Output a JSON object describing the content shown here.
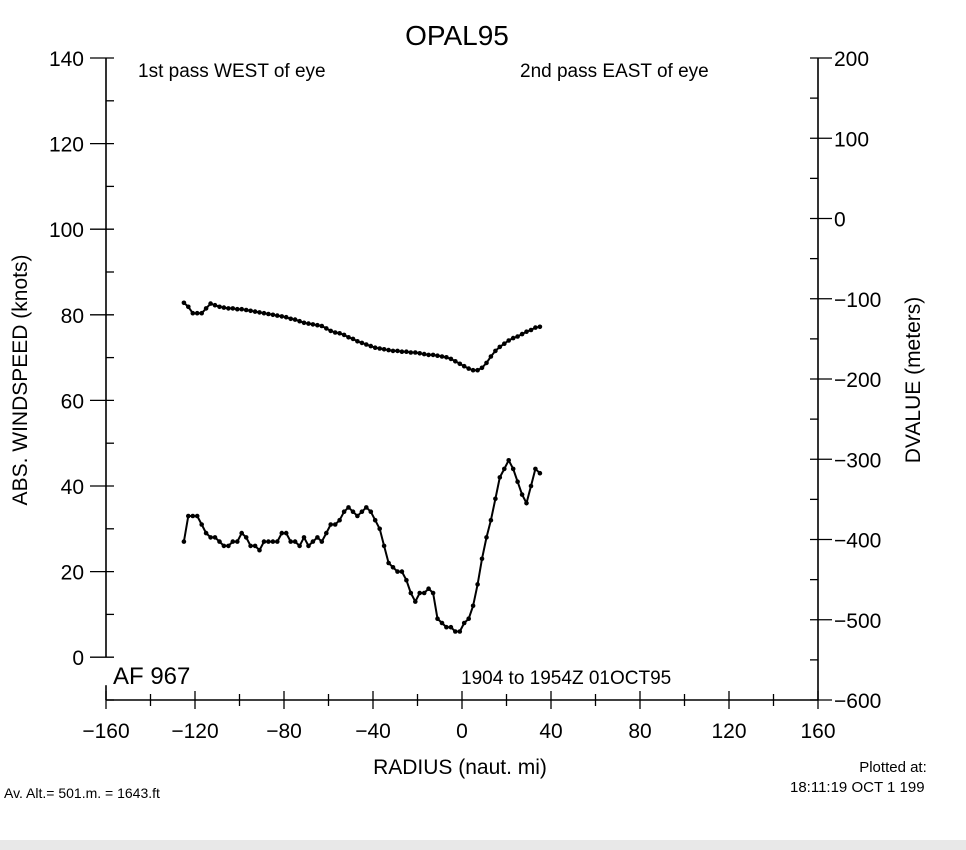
{
  "chart_data": {
    "type": "line",
    "title": "OPAL95",
    "xlabel": "RADIUS (naut. mi)",
    "ylabel": "ABS. WINDSPEED (knots)",
    "y2label": "DVALUE (meters)",
    "xlim": [
      -160,
      160
    ],
    "ylim": [
      -10,
      140
    ],
    "y2lim": [
      -600,
      200
    ],
    "xticks": [
      "−160",
      "−120",
      "−80",
      "−40",
      "0",
      "40",
      "80",
      "120",
      "160"
    ],
    "xtick_values": [
      -160,
      -120,
      -80,
      -40,
      0,
      40,
      80,
      120,
      160
    ],
    "yticks": [
      "0",
      "20",
      "40",
      "60",
      "80",
      "100",
      "120",
      "140"
    ],
    "ytick_values": [
      0,
      20,
      40,
      60,
      80,
      100,
      120,
      140
    ],
    "y2ticks": [
      "−600",
      "−500",
      "−400",
      "−300",
      "−200",
      "−100",
      "0",
      "100",
      "200"
    ],
    "y2tick_values": [
      -600,
      -500,
      -400,
      -300,
      -200,
      -100,
      0,
      100,
      200
    ],
    "grid": false,
    "annotations": {
      "first_pass": "1st pass WEST of eye",
      "second_pass": "2nd pass EAST of eye",
      "aircraft": "AF 967",
      "time_range": "1904 to 1954Z 01OCT95"
    },
    "series": [
      {
        "axis": "right",
        "x": [
          -125,
          -123,
          -121,
          -119,
          -117,
          -115,
          -113,
          -111,
          -109,
          -107,
          -105,
          -103,
          -101,
          -99,
          -97,
          -95,
          -93,
          -91,
          -89,
          -87,
          -85,
          -83,
          -81,
          -79,
          -77,
          -75,
          -73,
          -71,
          -69,
          -67,
          -65,
          -63,
          -61,
          -59,
          -57,
          -55,
          -53,
          -51,
          -49,
          -47,
          -45,
          -43,
          -41,
          -39,
          -37,
          -35,
          -33,
          -31,
          -29,
          -27,
          -25,
          -23,
          -21,
          -19,
          -17,
          -15,
          -13,
          -11,
          -9,
          -7,
          -5,
          -3,
          -1,
          1,
          3,
          5,
          7,
          9,
          11,
          13,
          15,
          17,
          19,
          21,
          23,
          25,
          27,
          29,
          31,
          33,
          35
        ],
        "values": [
          -105,
          -110,
          -118,
          -118,
          -118,
          -112,
          -106,
          -108,
          -110,
          -111,
          -112,
          -112,
          -113,
          -113,
          -114,
          -115,
          -116,
          -117,
          -118,
          -119,
          -120,
          -121,
          -122,
          -123,
          -125,
          -126,
          -128,
          -130,
          -131,
          -132,
          -133,
          -134,
          -137,
          -140,
          -142,
          -143,
          -145,
          -148,
          -150,
          -153,
          -155,
          -157,
          -159,
          -161,
          -162,
          -163,
          -164,
          -165,
          -165,
          -166,
          -166,
          -167,
          -167,
          -168,
          -169,
          -170,
          -170,
          -171,
          -172,
          -173,
          -175,
          -178,
          -181,
          -184,
          -187,
          -189,
          -189,
          -186,
          -180,
          -172,
          -165,
          -160,
          -156,
          -152,
          -149,
          -147,
          -144,
          -141,
          -139,
          -136,
          -135
        ]
      },
      {
        "axis": "left",
        "x": [
          -125,
          -123,
          -121,
          -119,
          -117,
          -115,
          -113,
          -111,
          -109,
          -107,
          -105,
          -103,
          -101,
          -99,
          -97,
          -95,
          -93,
          -91,
          -89,
          -87,
          -85,
          -83,
          -81,
          -79,
          -77,
          -75,
          -73,
          -71,
          -69,
          -67,
          -65,
          -63,
          -61,
          -59,
          -57,
          -55,
          -53,
          -51,
          -49,
          -47,
          -45,
          -43,
          -41,
          -39,
          -37,
          -35,
          -33,
          -31,
          -29,
          -27,
          -25,
          -23,
          -21,
          -19,
          -17,
          -15,
          -13,
          -11,
          -9,
          -7,
          -5,
          -3,
          -1,
          1,
          3,
          5,
          7,
          9,
          11,
          13,
          15,
          17,
          19,
          21,
          23,
          25,
          27,
          29,
          31,
          33,
          35
        ],
        "values": [
          27,
          33,
          33,
          33,
          31,
          29,
          28,
          28,
          27,
          26,
          26,
          27,
          27,
          29,
          28,
          26,
          26,
          25,
          27,
          27,
          27,
          27,
          29,
          29,
          27,
          27,
          26,
          28,
          26,
          27,
          28,
          27,
          29,
          31,
          31,
          32,
          34,
          35,
          34,
          33,
          34,
          35,
          34,
          32,
          30,
          26,
          22,
          21,
          20,
          20,
          18,
          15,
          13,
          15,
          15,
          16,
          15,
          9,
          8,
          7,
          7,
          6,
          6,
          8,
          9,
          12,
          17,
          23,
          28,
          32,
          37,
          42,
          44,
          46,
          44,
          41,
          38,
          36,
          40,
          44,
          43
        ]
      }
    ],
    "footer": {
      "altitude": "Av. Alt.=  501.m. =  1643.ft",
      "plotted_label": "Plotted at:",
      "plotted_time": "18:11:19 OCT  1 199"
    }
  }
}
